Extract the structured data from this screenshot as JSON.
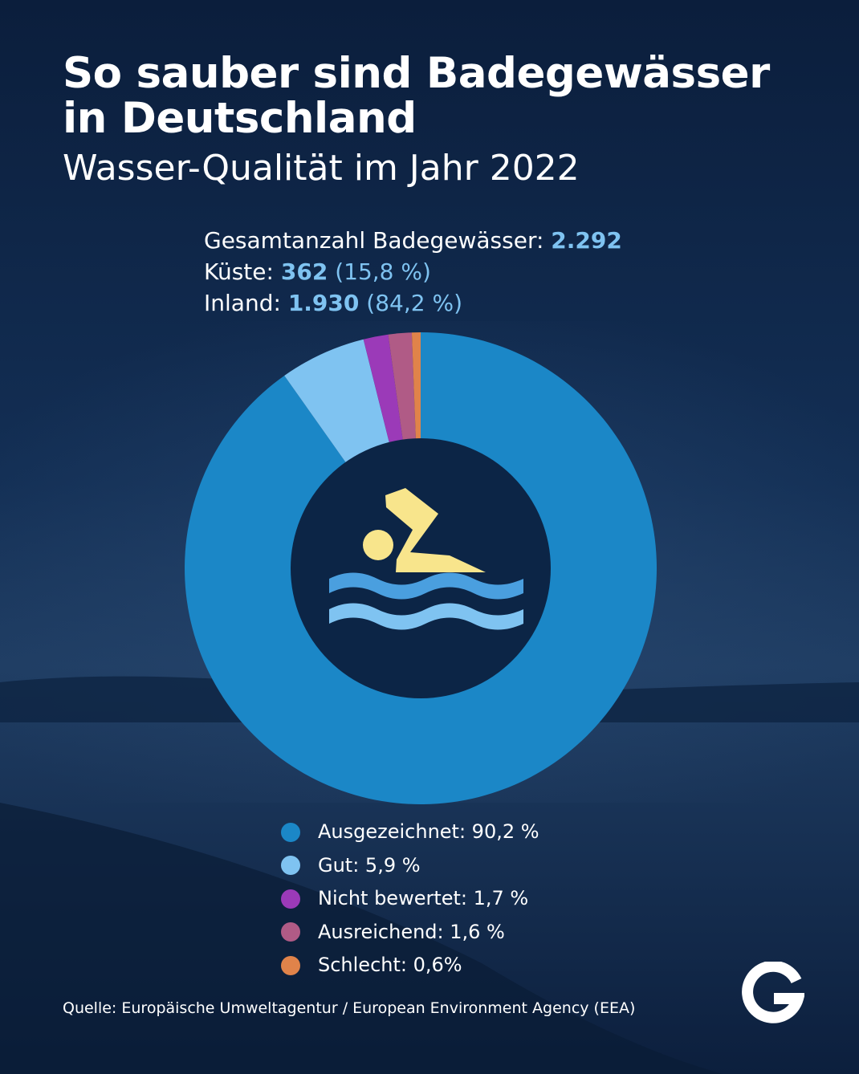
{
  "header": {
    "title_line1": "So sauber sind Badegewässer",
    "title_line2": "in Deutschland",
    "subtitle": "Wasser-Qualität im Jahr 2022"
  },
  "stats": {
    "total_label": "Gesamtanzahl Badegewässer:",
    "total_value": "2.292",
    "coast_label": "Küste:",
    "coast_value": "362",
    "coast_pct": "(15,8 %)",
    "inland_label": "Inland:",
    "inland_value": "1.930",
    "inland_pct": "(84,2 %)"
  },
  "chart_data": {
    "type": "pie",
    "categories": [
      "Ausgezeichnet",
      "Gut",
      "Nicht bewertet",
      "Ausreichend",
      "Schlecht"
    ],
    "values": [
      90.2,
      5.9,
      1.7,
      1.6,
      0.6
    ],
    "colors": [
      "#1b87c7",
      "#7fc3f1",
      "#9b3ab8",
      "#b05b86",
      "#e0834a"
    ],
    "legend_labels": [
      "Ausgezeichnet: 90,2 %",
      "Gut: 5,9 %",
      "Nicht bewertet: 1,7 %",
      "Ausreichend: 1,6 %",
      "Schlecht: 0,6%"
    ],
    "legend_position": "bottom",
    "center_icon": "swimmer-icon"
  },
  "footer": {
    "source": "Quelle: Europäische Umweltagentur / European Environment Agency (EEA)",
    "logo_icon": "g-logo-icon"
  },
  "colors": {
    "background": "#0f2a4f",
    "accent": "#7fc3f1",
    "icon_yellow": "#f8e58c"
  }
}
